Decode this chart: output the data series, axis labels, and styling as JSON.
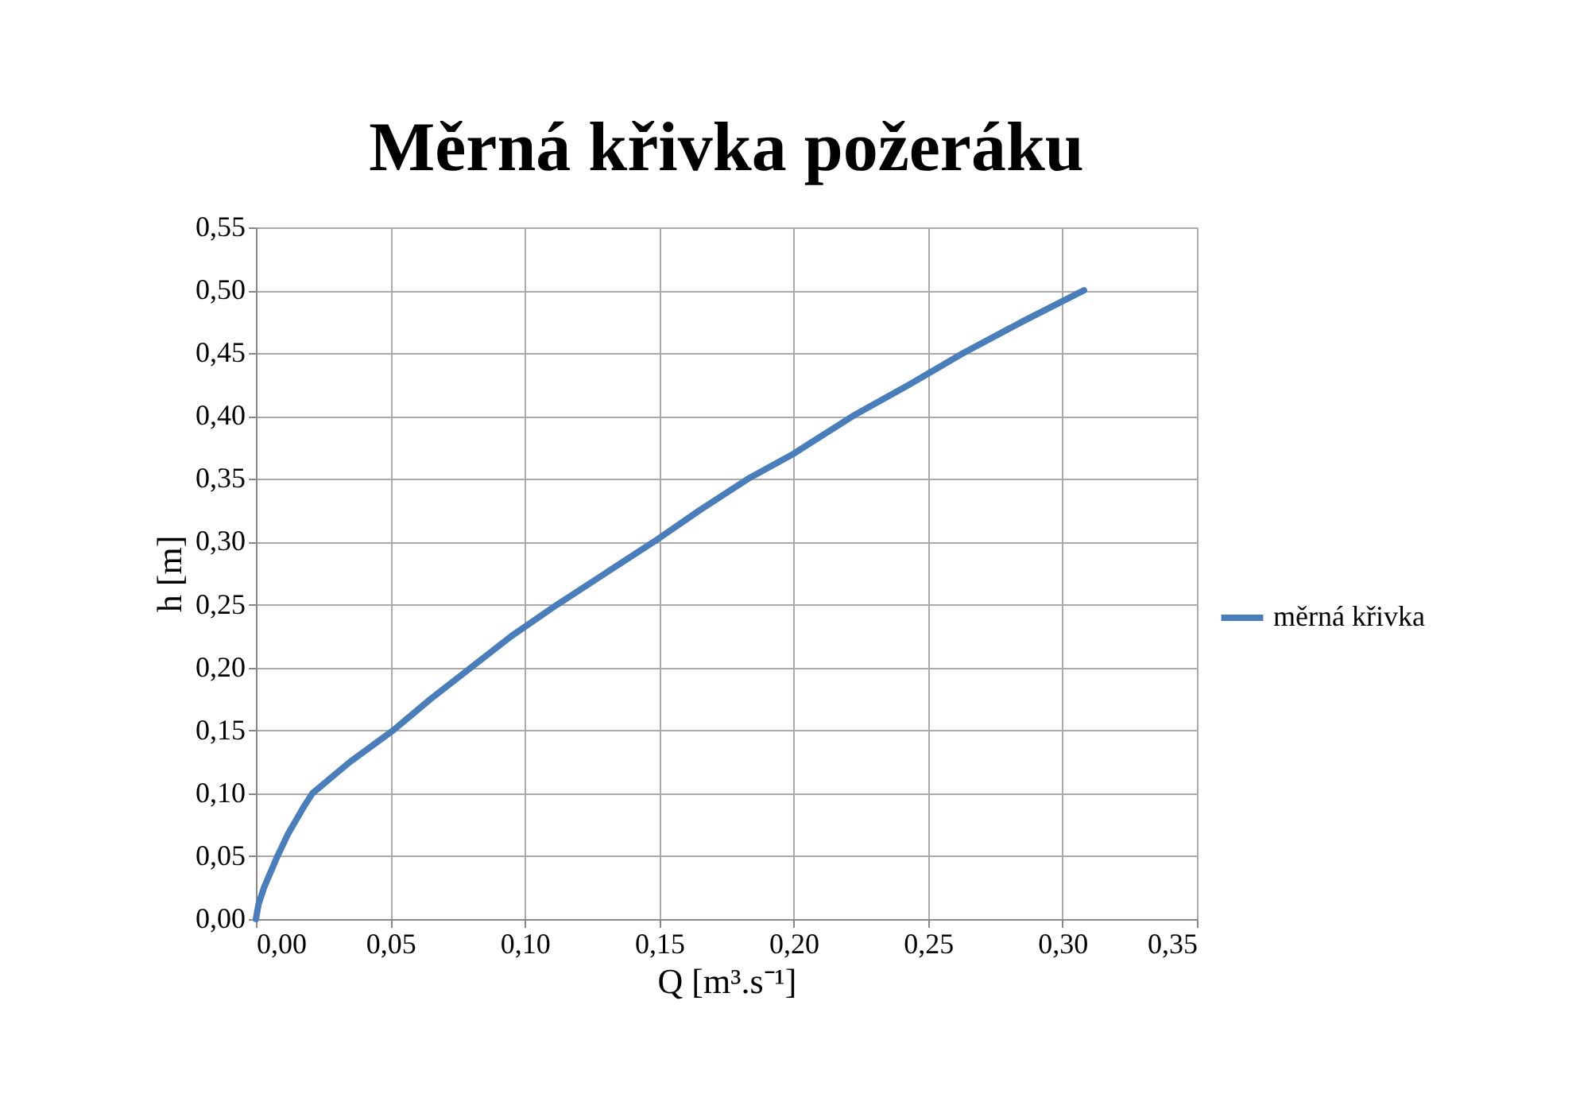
{
  "chart_data": {
    "type": "line",
    "title": "Měrná křivka požeráku",
    "xlabel": "Q  [m³.s⁻¹]",
    "ylabel": "h [m]",
    "series": [
      {
        "name": "měrná křivka",
        "color": "#4a7ebb",
        "x": [
          0,
          0.001,
          0.003,
          0.005,
          0.008,
          0.012,
          0.018,
          0.021,
          0.035,
          0.051,
          0.065,
          0.08,
          0.095,
          0.112,
          0.13,
          0.148,
          0.165,
          0.183,
          0.2,
          0.222,
          0.243,
          0.263,
          0.285,
          0.308
        ],
        "values": [
          0,
          0.012,
          0.025,
          0.035,
          0.05,
          0.068,
          0.09,
          0.1,
          0.125,
          0.15,
          0.175,
          0.2,
          0.225,
          0.25,
          0.275,
          0.3,
          0.325,
          0.35,
          0.37,
          0.4,
          0.425,
          0.45,
          0.475,
          0.5
        ]
      }
    ],
    "xlim": [
      0,
      0.35
    ],
    "xticks": [
      {
        "value": 0,
        "label": "0,00"
      },
      {
        "value": 0.05,
        "label": "0,05"
      },
      {
        "value": 0.1,
        "label": "0,10"
      },
      {
        "value": 0.15,
        "label": "0,15"
      },
      {
        "value": 0.2,
        "label": "0,20"
      },
      {
        "value": 0.25,
        "label": "0,25"
      },
      {
        "value": 0.3,
        "label": "0,30"
      },
      {
        "value": 0.35,
        "label": "0,35"
      }
    ],
    "ylim": [
      0,
      0.55
    ],
    "yticks": [
      {
        "value": 0,
        "label": "0,00"
      },
      {
        "value": 0.05,
        "label": "0,05"
      },
      {
        "value": 0.1,
        "label": "0,10"
      },
      {
        "value": 0.15,
        "label": "0,15"
      },
      {
        "value": 0.2,
        "label": "0,20"
      },
      {
        "value": 0.25,
        "label": "0,25"
      },
      {
        "value": 0.3,
        "label": "0,30"
      },
      {
        "value": 0.35,
        "label": "0,35"
      },
      {
        "value": 0.4,
        "label": "0,40"
      },
      {
        "value": 0.45,
        "label": "0,45"
      },
      {
        "value": 0.5,
        "label": "0,50"
      },
      {
        "value": 0.55,
        "label": "0,55"
      }
    ],
    "grid": true,
    "legend": "right",
    "marker": "none",
    "line_style": "solid"
  }
}
